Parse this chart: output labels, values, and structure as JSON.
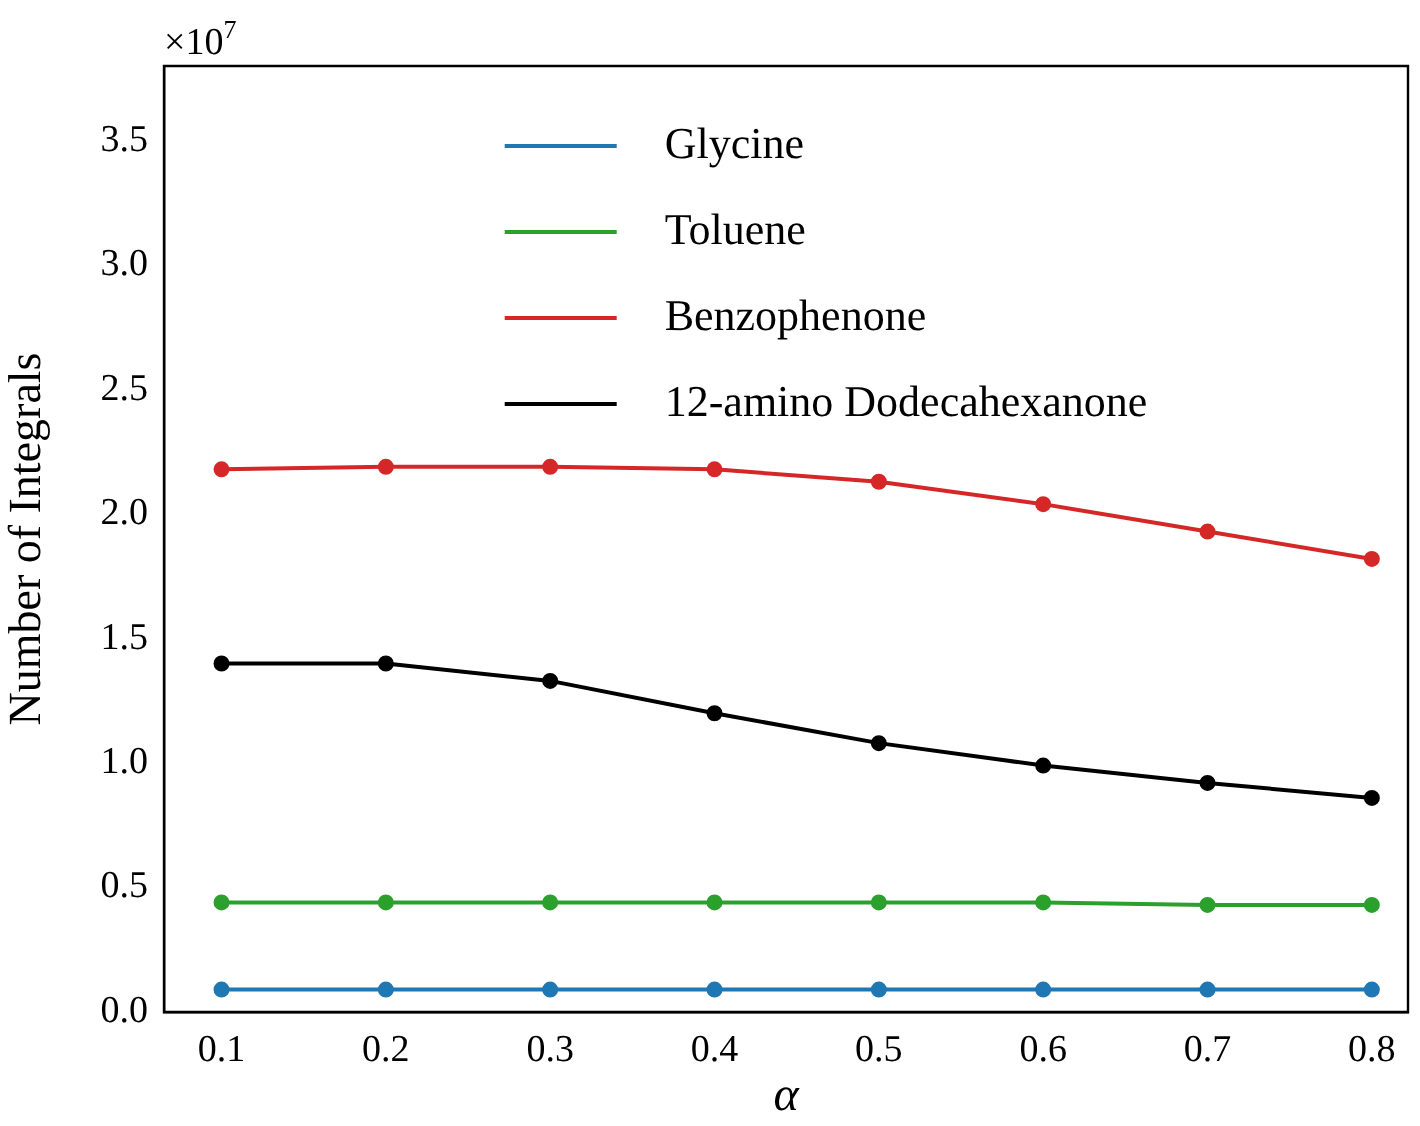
{
  "chart_data": {
    "type": "line",
    "xlabel": "α",
    "ylabel": "Number of Integrals",
    "annotations": [
      "×10$^{7}$"
    ],
    "x": [
      0.1,
      0.2,
      0.3,
      0.4,
      0.5,
      0.6,
      0.7,
      0.8
    ],
    "series": [
      {
        "name": "Glycine",
        "color": "#1f77b4",
        "values": [
          0.09,
          0.09,
          0.09,
          0.09,
          0.09,
          0.09,
          0.09,
          0.09
        ]
      },
      {
        "name": "Toluene",
        "color": "#2ca02c",
        "values": [
          0.44,
          0.44,
          0.44,
          0.44,
          0.44,
          0.44,
          0.43,
          0.43
        ]
      },
      {
        "name": "Benzophenone",
        "color": "#d62728",
        "values": [
          2.18,
          2.19,
          2.19,
          2.18,
          2.13,
          2.04,
          1.93,
          1.82
        ]
      },
      {
        "name": "12-amino Dodecahexanone",
        "color": "#000000",
        "values": [
          1.4,
          1.4,
          1.33,
          1.2,
          1.08,
          0.99,
          0.92,
          0.86
        ]
      }
    ],
    "xlim": [
      0.065,
      0.822
    ],
    "xticks": [
      0.1,
      0.2,
      0.3,
      0.4,
      0.5,
      0.6,
      0.7,
      0.8
    ],
    "ylim": [
      0,
      3.8
    ],
    "yticks": [
      {
        "value": 0,
        "label": "0.0"
      },
      0.5,
      {
        "value": 1,
        "label": "1.0"
      },
      1.5,
      {
        "value": 2,
        "label": "2.0"
      },
      2.5,
      {
        "value": 3,
        "label": "3.0"
      },
      3.5
    ],
    "grid": false,
    "legend": "top",
    "marker": "circle",
    "line_style": "solid"
  }
}
